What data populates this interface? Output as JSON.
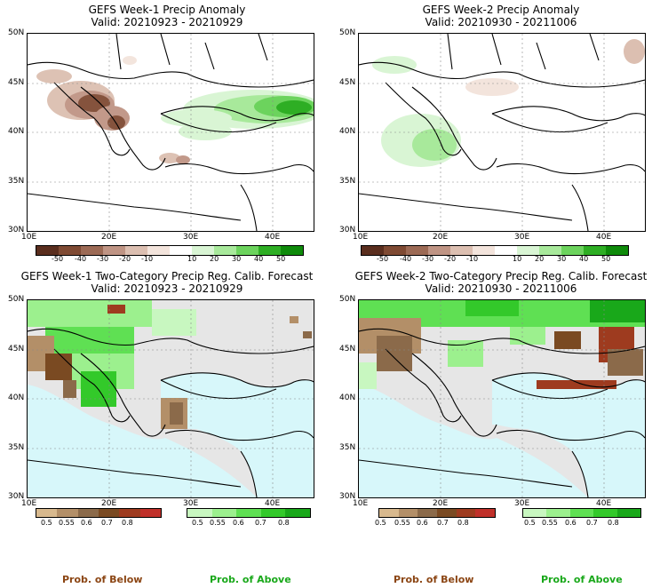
{
  "panels": {
    "p1": {
      "title": "GEFS Week-1 Precip Anomaly",
      "valid": "Valid: 20210923 - 20210929"
    },
    "p2": {
      "title": "GEFS Week-2 Precip Anomaly",
      "valid": "Valid: 20210930 - 20211006"
    },
    "p3": {
      "title": "GEFS Week-1 Two-Category Precip Reg. Calib. Forecast",
      "valid": "Valid: 20210923 - 20210929"
    },
    "p4": {
      "title": "GEFS Week-2 Two-Category Precip Reg. Calib. Forecast",
      "valid": "Valid: 20210930 - 20211006"
    }
  },
  "axes": {
    "lat": [
      "50N",
      "45N",
      "40N",
      "35N",
      "30N"
    ],
    "lon": [
      "10E",
      "20E",
      "30E",
      "40E"
    ]
  },
  "anomaly_colorbar": {
    "ticks": [
      "-50",
      "-40",
      "-30",
      "-20",
      "-10",
      "10",
      "20",
      "30",
      "40",
      "50"
    ],
    "colors": [
      "#5a2e1e",
      "#7f4a33",
      "#9c6a55",
      "#bf9484",
      "#dcbfb1",
      "#f3e4dc",
      "#ffffff",
      "#d9f5d4",
      "#a8e99b",
      "#6cd35d",
      "#2eae24",
      "#0e8a0a"
    ]
  },
  "prob_colorbars": {
    "below": {
      "ticks": [
        "0.5",
        "0.55",
        "0.6",
        "0.7",
        "0.8"
      ],
      "colors": [
        "#d8b98e",
        "#b38f68",
        "#8b6a4a",
        "#7a4a22",
        "#9e3b1f",
        "#c0302a"
      ]
    },
    "above": {
      "ticks": [
        "0.5",
        "0.55",
        "0.6",
        "0.7",
        "0.8"
      ],
      "colors": [
        "#c8f7c0",
        "#9cf08e",
        "#5fe053",
        "#33c92a",
        "#19a81a"
      ]
    }
  },
  "legend": {
    "below": "Prob. of Below",
    "above": "Prob. of Above"
  },
  "colors": {
    "sea": "#d7f7fa",
    "land_nodata": "#e6e6e6",
    "below_text": "#8b4513",
    "above_text": "#19a81a"
  }
}
